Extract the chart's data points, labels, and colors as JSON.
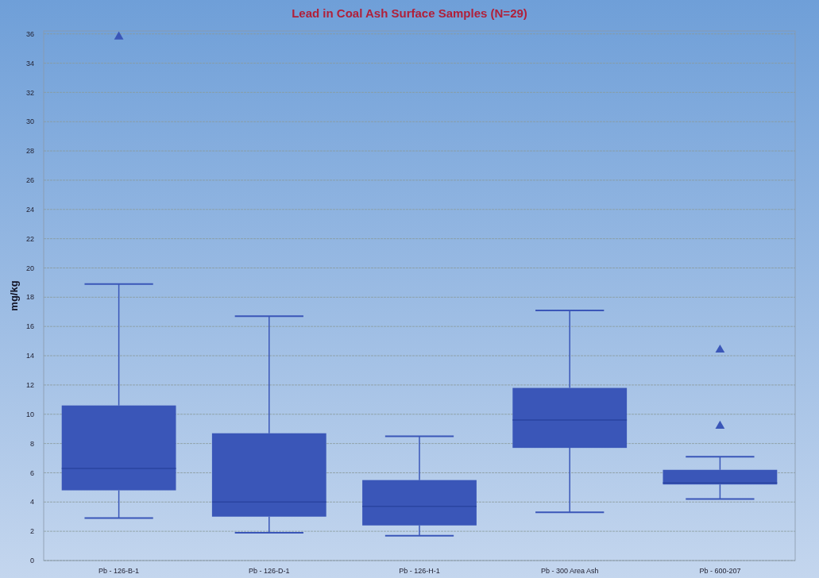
{
  "chart_data": {
    "type": "box",
    "title": "Lead in Coal Ash Surface Samples (N=29)",
    "ylabel": "mg/kg",
    "categories": [
      "Pb - 126-B-1",
      "Pb - 126-D-1",
      "Pb - 126-H-1",
      "Pb - 300 Area Ash",
      "Pb - 600-207"
    ],
    "color": "#3a56b8",
    "boxes": [
      {
        "low": 2.9,
        "q1": 4.8,
        "median": 6.3,
        "q3": 10.6,
        "high": 18.9,
        "outliers": [
          35.8
        ]
      },
      {
        "low": 1.9,
        "q1": 3.0,
        "median": 4.0,
        "q3": 8.7,
        "high": 16.7
      },
      {
        "low": 1.7,
        "q1": 2.4,
        "median": 3.7,
        "q3": 5.5,
        "high": 8.5
      },
      {
        "low": 3.3,
        "q1": 7.7,
        "median": 9.6,
        "q3": 11.8,
        "high": 17.1
      },
      {
        "low": 4.2,
        "q1": 5.2,
        "median": 5.3,
        "q3": 6.2,
        "high": 7.1,
        "outliers": [
          14.4,
          9.2
        ]
      }
    ],
    "ylim": [
      0,
      36.2
    ],
    "yticks": [
      0,
      2,
      4,
      6,
      8,
      10,
      12,
      14,
      16,
      18,
      20,
      22,
      24,
      26,
      28,
      30,
      32,
      34,
      36
    ],
    "grid": "y",
    "marker": "triangle"
  }
}
